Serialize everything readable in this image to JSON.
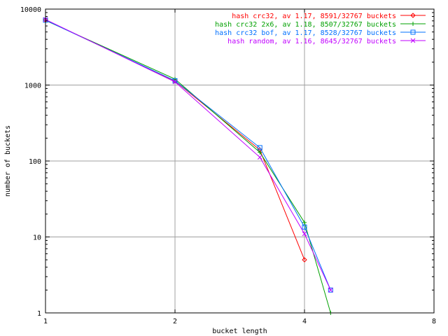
{
  "chart_data": {
    "type": "line",
    "xlabel": "bucket length",
    "ylabel": "number of buckets",
    "x_scale": "log2",
    "y_scale": "log10",
    "xlim": [
      1,
      8
    ],
    "ylim": [
      1,
      10000
    ],
    "grid": true,
    "legend_position": "top-right",
    "x_ticks": [
      "1",
      "2",
      "4",
      "8"
    ],
    "y_ticks": [
      "1",
      "10",
      "100",
      "1000",
      "10000"
    ],
    "series": [
      {
        "name": "hash crc32, av 1.17, 8591/32767 buckets",
        "color": "#ff0000",
        "marker": "diamond",
        "points": [
          [
            1,
            7200
          ],
          [
            2,
            1130
          ],
          [
            3.15,
            140
          ],
          [
            4,
            5
          ]
        ]
      },
      {
        "name": "hash crc32 2x6, av 1.18, 8507/32767 buckets",
        "color": "#00a000",
        "marker": "plus",
        "points": [
          [
            1,
            7100
          ],
          [
            2,
            1200
          ],
          [
            3.15,
            130
          ],
          [
            4,
            15.5
          ],
          [
            4.6,
            1
          ]
        ]
      },
      {
        "name": "hash crc32 bof, av 1.17, 8528/32767 buckets",
        "color": "#0070ff",
        "marker": "square",
        "points": [
          [
            1,
            7150
          ],
          [
            2,
            1140
          ],
          [
            3.15,
            150
          ],
          [
            4,
            13.5
          ],
          [
            4.6,
            2
          ]
        ]
      },
      {
        "name": "hash random, av 1.16, 8645/32767 buckets",
        "color": "#c000ff",
        "marker": "cross",
        "points": [
          [
            1,
            7300
          ],
          [
            2,
            1100
          ],
          [
            3.15,
            112
          ],
          [
            4,
            11
          ],
          [
            4.6,
            2
          ]
        ]
      }
    ]
  }
}
